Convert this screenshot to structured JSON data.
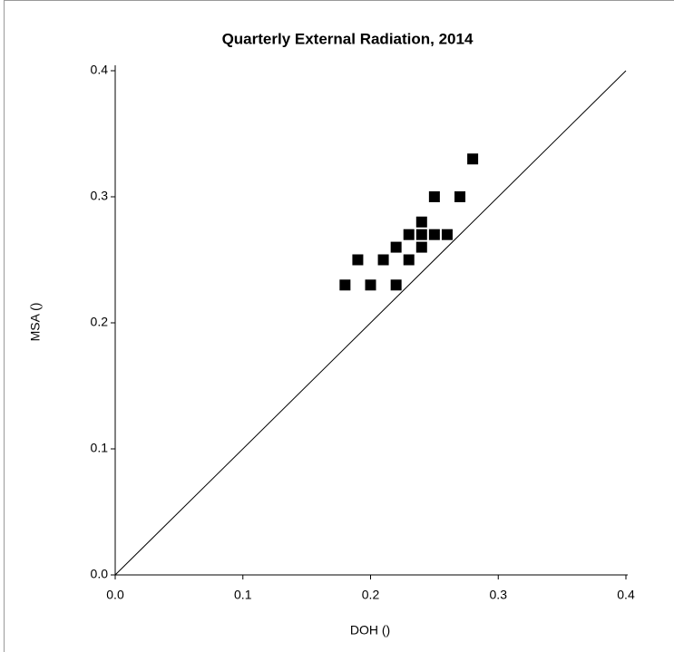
{
  "chart_data": {
    "type": "scatter",
    "title": "Quarterly External Radiation, 2014",
    "x_label": "DOH ()",
    "y_label": "MSA ()",
    "x": [
      0.18,
      0.19,
      0.2,
      0.21,
      0.22,
      0.22,
      0.23,
      0.23,
      0.24,
      0.24,
      0.24,
      0.25,
      0.25,
      0.26,
      0.27,
      0.28
    ],
    "y": [
      0.23,
      0.25,
      0.23,
      0.25,
      0.26,
      0.23,
      0.27,
      0.25,
      0.28,
      0.27,
      0.26,
      0.3,
      0.27,
      0.27,
      0.3,
      0.33
    ],
    "color": "#000000",
    "xlim": [
      0,
      0.4
    ],
    "ylim": [
      0,
      0.4
    ],
    "xticks": [
      {
        "value": 0,
        "label": "0.0"
      },
      0.1,
      0.2,
      0.3,
      0.4
    ],
    "yticks": [
      {
        "value": 0,
        "label": "0.0"
      },
      0.1,
      0.2,
      0.3,
      0.4
    ],
    "identity_line": true,
    "grid": false
  }
}
